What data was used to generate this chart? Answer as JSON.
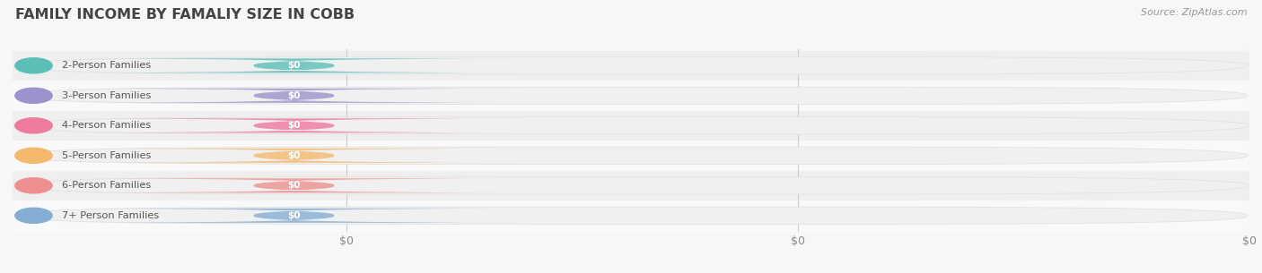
{
  "title": "FAMILY INCOME BY FAMALIY SIZE IN COBB",
  "source": "Source: ZipAtlas.com",
  "categories": [
    "2-Person Families",
    "3-Person Families",
    "4-Person Families",
    "5-Person Families",
    "6-Person Families",
    "7+ Person Families"
  ],
  "values": [
    0,
    0,
    0,
    0,
    0,
    0
  ],
  "bar_colors": [
    "#5bbfb8",
    "#9b94cc",
    "#ee7a9e",
    "#f5b96e",
    "#ee8f8f",
    "#85aed4"
  ],
  "background_color": "#f7f7f7",
  "row_bg_even": "#efefef",
  "row_bg_odd": "#f9f9f9",
  "pill_bg_color": "#e8e8e8",
  "label_color": "#555555",
  "value_label_color": "#ffffff",
  "title_color": "#444444",
  "source_color": "#999999",
  "figsize": [
    14.06,
    3.05
  ],
  "dpi": 100,
  "xlim_max": 1.0,
  "xtick_positions": [
    0.27,
    0.635,
    1.0
  ],
  "xtick_labels": [
    "$0",
    "$0",
    "$0"
  ]
}
